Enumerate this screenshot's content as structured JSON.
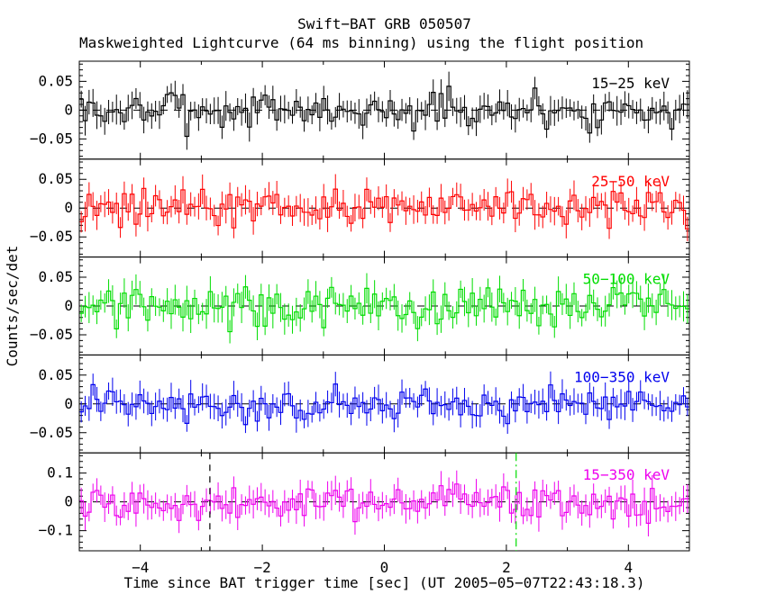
{
  "figure": {
    "title": "Swift−BAT GRB 050507",
    "subtitle": "Maskweighted Lightcurve (64 ms binning) using the flight position",
    "xlabel": "Time since BAT trigger time [sec] (UT 2005−05−07T22:43:18.3)",
    "ylabel": "Counts/sec/det"
  },
  "chart_data": {
    "type": "line",
    "subtype": "histogram-step lightcurve with per-bin error bars, 5 stacked panels, mask-weighted noise around zero (no strong burst visible)",
    "x_range": [
      -5,
      5
    ],
    "x_ticks": [
      -4,
      -2,
      0,
      2,
      4
    ],
    "x_tick_labels": [
      "−4",
      "−2",
      "0",
      "2",
      "4"
    ],
    "x_minor_step": 1,
    "bin_seconds": 0.064,
    "n_bins": 156,
    "grid": false,
    "background": "#ffffff",
    "frame_color": "#000000",
    "zero_line": {
      "y": 0,
      "style": "dashed",
      "color": "#000000"
    },
    "panels": [
      {
        "label": "15−25 keV",
        "color": "#000000",
        "ylim": [
          -0.085,
          0.085
        ],
        "yticks": [
          0.05,
          0,
          -0.05
        ],
        "ytick_labels": [
          "0.05",
          "0",
          "−0.05"
        ],
        "y_minor_step": 0.01,
        "noise_sigma": 0.016,
        "err_sigma": 0.02,
        "seed": 7
      },
      {
        "label": "25−50 keV",
        "color": "#ff0000",
        "ylim": [
          -0.085,
          0.085
        ],
        "yticks": [
          0.05,
          0,
          -0.05
        ],
        "ytick_labels": [
          "0.05",
          "0",
          "−0.05"
        ],
        "y_minor_step": 0.01,
        "noise_sigma": 0.016,
        "err_sigma": 0.02,
        "seed": 42
      },
      {
        "label": "50−100 keV",
        "color": "#00dd00",
        "ylim": [
          -0.085,
          0.085
        ],
        "yticks": [
          0.05,
          0,
          -0.05
        ],
        "ytick_labels": [
          "0.05",
          "0",
          "−0.05"
        ],
        "y_minor_step": 0.01,
        "noise_sigma": 0.017,
        "err_sigma": 0.021,
        "seed": 13
      },
      {
        "label": "100−350 keV",
        "color": "#0000ee",
        "ylim": [
          -0.085,
          0.085
        ],
        "yticks": [
          0.05,
          0,
          -0.05
        ],
        "ytick_labels": [
          "0.05",
          "0",
          "−0.05"
        ],
        "y_minor_step": 0.01,
        "noise_sigma": 0.015,
        "err_sigma": 0.02,
        "seed": 99
      },
      {
        "label": "15−350 keV",
        "color": "#ee00ee",
        "ylim": [
          -0.17,
          0.17
        ],
        "yticks": [
          0.1,
          0,
          -0.1
        ],
        "ytick_labels": [
          "0.1",
          "0",
          "−0.1"
        ],
        "y_minor_step": 0.02,
        "noise_sigma": 0.033,
        "err_sigma": 0.04,
        "seed": 5
      }
    ],
    "markers": [
      {
        "panel_index": 4,
        "x": -2.86,
        "style": "dashed",
        "color": "#000000",
        "name": "interval-start-line"
      },
      {
        "panel_index": 4,
        "x": 2.16,
        "style": "dash-dot",
        "color": "#00dd00",
        "name": "interval-end-line"
      }
    ]
  }
}
